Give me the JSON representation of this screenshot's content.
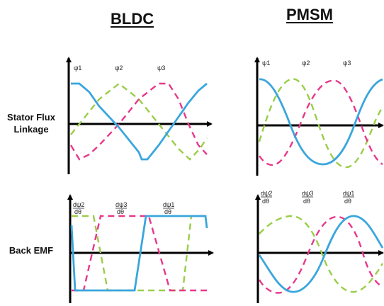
{
  "headers": {
    "bldc": "BLDC",
    "pmsm": "PMSM"
  },
  "rows": {
    "flux_line1": "Stator Flux",
    "flux_line2": "Linkage",
    "emf": "Back EMF"
  },
  "flux_labels": [
    "ψ1",
    "ψ2",
    "ψ3"
  ],
  "emf_labels": [
    {
      "num": "dψ2",
      "den": "dθ"
    },
    {
      "num": "dψ3",
      "den": "dθ"
    },
    {
      "num": "dψ1",
      "den": "dθ"
    }
  ],
  "colors": {
    "phase1": "#3aa6dd",
    "phase2": "#9acd4a",
    "phase3": "#e8388a",
    "axis": "#000000"
  }
}
